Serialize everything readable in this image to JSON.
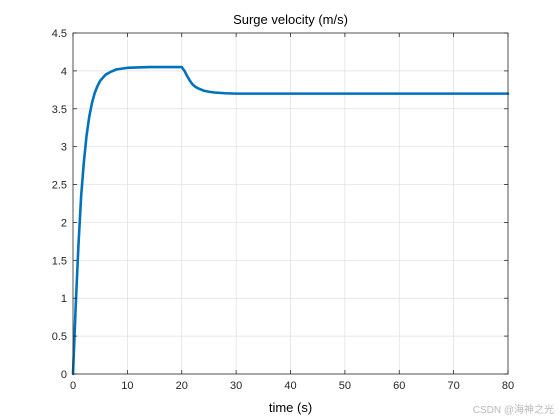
{
  "chart_data": {
    "type": "line",
    "title": "Surge velocity (m/s)",
    "xlabel": "time (s)",
    "ylabel": "",
    "xlim": [
      0,
      80
    ],
    "ylim": [
      0,
      4.5
    ],
    "xticks": [
      0,
      10,
      20,
      30,
      40,
      50,
      60,
      70,
      80
    ],
    "yticks": [
      0,
      0.5,
      1,
      1.5,
      2,
      2.5,
      3,
      3.5,
      4,
      4.5
    ],
    "xtick_labels": [
      "0",
      "10",
      "20",
      "30",
      "40",
      "50",
      "60",
      "70",
      "80"
    ],
    "ytick_labels": [
      "0",
      "0.5",
      "1",
      "1.5",
      "2",
      "2.5",
      "3",
      "3.5",
      "4",
      "4.5"
    ],
    "grid": true,
    "series": [
      {
        "color": "#0072bd",
        "x": [
          0,
          0.5,
          1,
          1.5,
          2,
          2.5,
          3,
          3.5,
          4,
          4.5,
          5,
          6,
          7,
          8,
          9,
          10,
          12,
          14,
          16,
          18,
          20,
          20.5,
          21,
          21.5,
          22,
          22.5,
          23,
          24,
          25,
          26,
          27,
          28,
          30,
          32,
          35,
          40,
          50,
          60,
          70,
          80
        ],
        "y": [
          0,
          0.9,
          1.7,
          2.35,
          2.8,
          3.15,
          3.4,
          3.58,
          3.71,
          3.8,
          3.87,
          3.95,
          3.99,
          4.02,
          4.03,
          4.04,
          4.045,
          4.05,
          4.05,
          4.05,
          4.05,
          4.0,
          3.93,
          3.87,
          3.82,
          3.79,
          3.77,
          3.74,
          3.725,
          3.715,
          3.71,
          3.705,
          3.7,
          3.7,
          3.7,
          3.7,
          3.7,
          3.7,
          3.7,
          3.7
        ]
      }
    ]
  },
  "watermark": "CSDN @海神之光"
}
